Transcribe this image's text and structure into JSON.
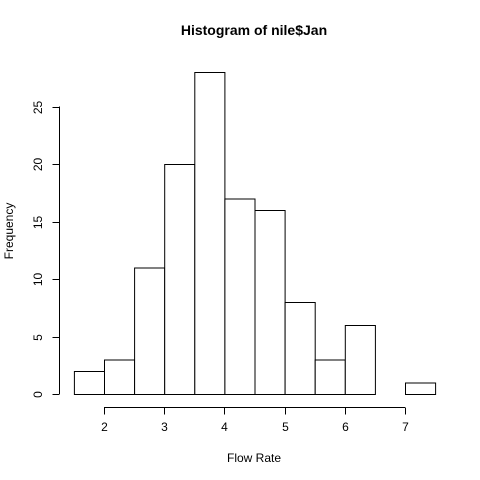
{
  "chart_data": {
    "type": "bar",
    "title": "Histogram of nile$Jan",
    "xlabel": "Flow Rate",
    "ylabel": "Frequency",
    "bins": [
      {
        "start": 1.5,
        "end": 2.0,
        "count": 2
      },
      {
        "start": 2.0,
        "end": 2.5,
        "count": 3
      },
      {
        "start": 2.5,
        "end": 3.0,
        "count": 11
      },
      {
        "start": 3.0,
        "end": 3.5,
        "count": 20
      },
      {
        "start": 3.5,
        "end": 4.0,
        "count": 28
      },
      {
        "start": 4.0,
        "end": 4.5,
        "count": 17
      },
      {
        "start": 4.5,
        "end": 5.0,
        "count": 16
      },
      {
        "start": 5.0,
        "end": 5.5,
        "count": 8
      },
      {
        "start": 5.5,
        "end": 6.0,
        "count": 3
      },
      {
        "start": 6.0,
        "end": 6.5,
        "count": 6
      },
      {
        "start": 6.5,
        "end": 7.0,
        "count": 0
      },
      {
        "start": 7.0,
        "end": 7.5,
        "count": 1
      }
    ],
    "xlim": [
      1.5,
      7.5
    ],
    "ylim": [
      0,
      28
    ],
    "x_ticks": [
      2,
      3,
      4,
      5,
      6,
      7
    ],
    "y_ticks": [
      0,
      5,
      10,
      15,
      20,
      25
    ],
    "grid": false
  }
}
